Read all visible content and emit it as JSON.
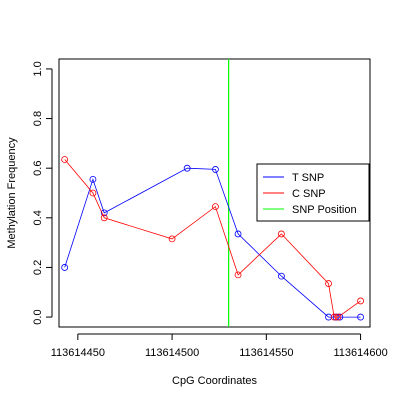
{
  "chart_data": {
    "type": "line",
    "title": "",
    "xlabel": "CpG Coordinates",
    "ylabel": "Methylation Frequency",
    "xlim": [
      113614440,
      113614605
    ],
    "ylim": [
      -0.04,
      1.04
    ],
    "x_ticks": [
      113614450,
      113614500,
      113614550,
      113614600
    ],
    "x_tick_labels": [
      "113614450",
      "113614500",
      "113614550",
      "113614600"
    ],
    "y_ticks": [
      0.0,
      0.2,
      0.4,
      0.6,
      0.8,
      1.0
    ],
    "y_tick_labels": [
      "0.0",
      "0.2",
      "0.4",
      "0.6",
      "0.8",
      "1.0"
    ],
    "grid": false,
    "legend_position": "right",
    "series": [
      {
        "name": "T SNP",
        "color": "#0000ff",
        "x": [
          113614443,
          113614458,
          113614464,
          113614508,
          113614523,
          113614535,
          113614558,
          113614583,
          113614587,
          113614589,
          113614600
        ],
        "y": [
          0.2,
          0.555,
          0.42,
          0.6,
          0.595,
          0.335,
          0.165,
          0.0,
          0.0,
          0.0,
          0.0
        ]
      },
      {
        "name": "C SNP",
        "color": "#ff0000",
        "x": [
          113614443,
          113614458,
          113614464,
          113614500,
          113614523,
          113614535,
          113614558,
          113614583,
          113614586,
          113614588,
          113614600
        ],
        "y": [
          0.635,
          0.5,
          0.4,
          0.315,
          0.445,
          0.17,
          0.335,
          0.135,
          0.0,
          0.0,
          0.065
        ]
      }
    ],
    "vlines": [
      {
        "name": "SNP Position",
        "x": 113614530,
        "color": "#00ff00"
      }
    ]
  }
}
